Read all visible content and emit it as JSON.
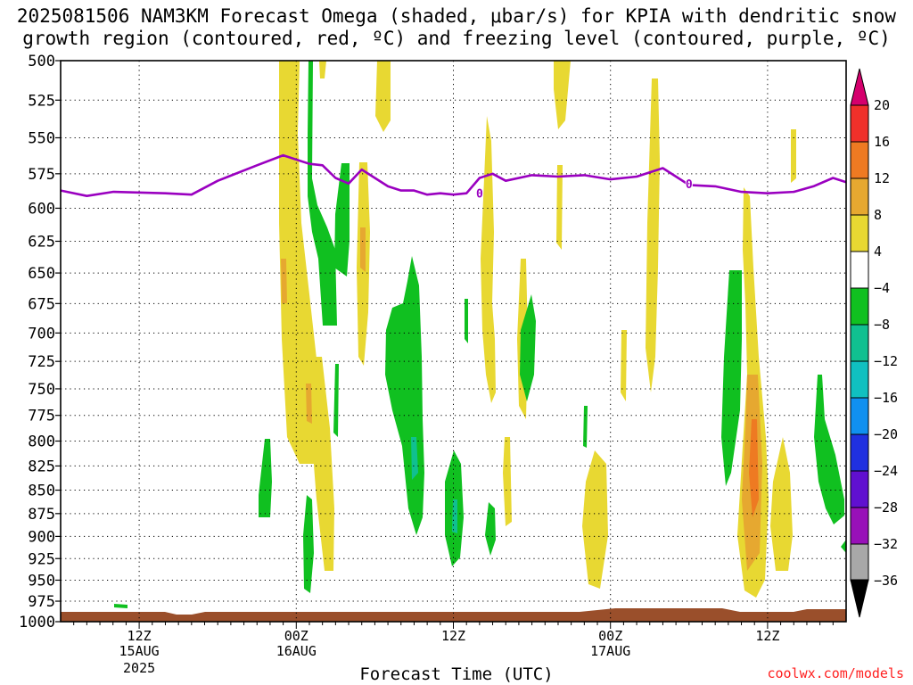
{
  "chart_data": {
    "type": "heatmap",
    "title": "2025081506 NAM3KM Forecast Omega (shaded, μbar/s) for KPIA with dendritic snow",
    "subtitle": "growth region (contoured, red, ºC) and freezing level (contoured, purple, ºC)",
    "xlabel": "Forecast Time (UTC)",
    "ylabel": "",
    "y_scale": "log-pressure",
    "y_reversed": true,
    "yticks": [
      "500",
      "525",
      "550",
      "575",
      "600",
      "625",
      "650",
      "675",
      "700",
      "725",
      "750",
      "775",
      "800",
      "825",
      "850",
      "875",
      "900",
      "925",
      "950",
      "975",
      "1000"
    ],
    "ylim": [
      1000,
      500
    ],
    "xlim_hours": [
      0,
      60
    ],
    "xticks": [
      {
        "hour": 6,
        "label": "12Z",
        "date": "15AUG",
        "year": "2025"
      },
      {
        "hour": 18,
        "label": "00Z",
        "date": "16AUG",
        "year": ""
      },
      {
        "hour": 30,
        "label": "12Z",
        "date": "",
        "year": ""
      },
      {
        "hour": 42,
        "label": "00Z",
        "date": "17AUG",
        "year": ""
      },
      {
        "hour": 54,
        "label": "12Z",
        "date": "",
        "year": ""
      }
    ],
    "grid": true,
    "freezing_level": {
      "label": "0",
      "hours": [
        0,
        2,
        4,
        8,
        10,
        12,
        15,
        17,
        19,
        20,
        21,
        22,
        23,
        25,
        26,
        27,
        28,
        29,
        30,
        31,
        32,
        33,
        34,
        36,
        38,
        40,
        42,
        44,
        46,
        48,
        50,
        51,
        52,
        54,
        56,
        57.5,
        59,
        60
      ],
      "pressure": [
        587,
        591,
        588,
        589,
        590,
        580,
        569,
        562,
        568,
        569,
        578,
        582,
        572,
        584,
        587,
        587,
        590,
        589,
        590,
        589,
        578,
        575,
        580,
        576,
        577,
        576,
        579,
        577,
        571,
        583,
        584,
        586,
        588,
        589,
        588,
        584,
        578,
        581
      ]
    },
    "colorbar": {
      "ticks": [
        "20",
        "16",
        "12",
        "8",
        "4",
        "−4",
        "−8",
        "−12",
        "−16",
        "−20",
        "−24",
        "−28",
        "−32",
        "−36"
      ],
      "colors": [
        "#d5006d",
        "#f0302a",
        "#ee7a22",
        "#e6a830",
        "#e8d832",
        "#ffffff",
        "#10c020",
        "#10c090",
        "#10c0c0",
        "#1090f0",
        "#2030e0",
        "#6010d0",
        "#9810b8",
        "#a8a8a8",
        "#000000"
      ]
    },
    "colors": {
      "ground": "#9a4f2b",
      "dsgz": "#e00000",
      "freezing": "#9a00c0"
    },
    "credit": "coolwx.com/models"
  }
}
